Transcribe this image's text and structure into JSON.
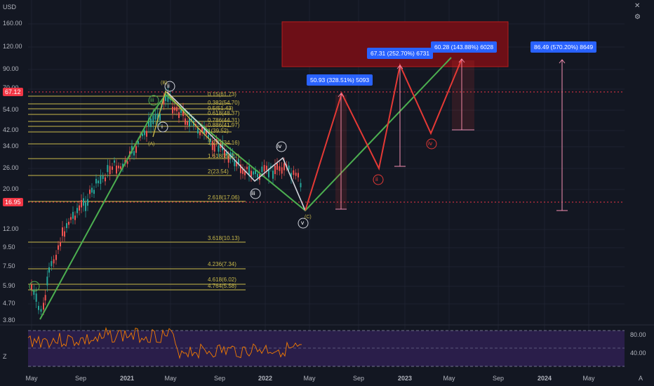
{
  "axis": {
    "currency": "USD",
    "y_labels": [
      "160.00",
      "120.00",
      "90.00",
      "70.00",
      "54.00",
      "42.00",
      "34.00",
      "26.00",
      "20.00",
      "12.00",
      "9.50",
      "7.50",
      "5.90",
      "4.70",
      "3.80"
    ],
    "x_labels": [
      "May",
      "Sep",
      "2021",
      "May",
      "Sep",
      "2022",
      "May",
      "Sep",
      "2023",
      "May",
      "Sep",
      "2024",
      "May"
    ],
    "rsi_labels": [
      "80.00",
      "40.00"
    ]
  },
  "price_tags": {
    "high": {
      "label": "67.12",
      "color": "#f23645"
    },
    "current": {
      "label": "16.95",
      "color": "#f23645"
    }
  },
  "fib_labels": [
    "0.15(61.73)",
    "0.382(54.70)",
    "0.5(51.43)",
    "0.618(48.37)",
    "0.786(44.31)",
    "0.886(41.97)",
    "1(39.52)",
    "1.272(34.16)",
    "1.618(28.27)",
    "2(23.54)",
    "2.618(17.06)",
    "3.618(10.13)",
    "4.236(7.34)",
    "4.618(6.02)",
    "4.764(5.58)"
  ],
  "wave_labels": {
    "green_i": "i",
    "green_ii": "ii",
    "green_iii": "iii",
    "A": "(A)",
    "B": "(B)",
    "C": "(C)",
    "white_i": "i",
    "white_iii": "iii",
    "white_iv": "iv",
    "white_v": "v",
    "red_ii": "ii",
    "red_iv": "iv"
  },
  "callouts": [
    {
      "text": "50.93 (328.51%) 5093"
    },
    {
      "text": "67.31 (252.70%) 6731"
    },
    {
      "text": "60.28 (143.88%) 6028"
    },
    {
      "text": "86.49 (570.20%) 8649"
    }
  ],
  "icons": {
    "close": "close-icon",
    "settings": "settings-icon",
    "zoom": "zoom-icon",
    "auto": "A"
  },
  "colors": {
    "background": "#131722",
    "green": "#4caf50",
    "red": "#e53935",
    "fib": "#c8b84a",
    "rsi": "#f57c00",
    "rsi_band": "#2a1e4a",
    "target_box": "#6d0f17"
  }
}
